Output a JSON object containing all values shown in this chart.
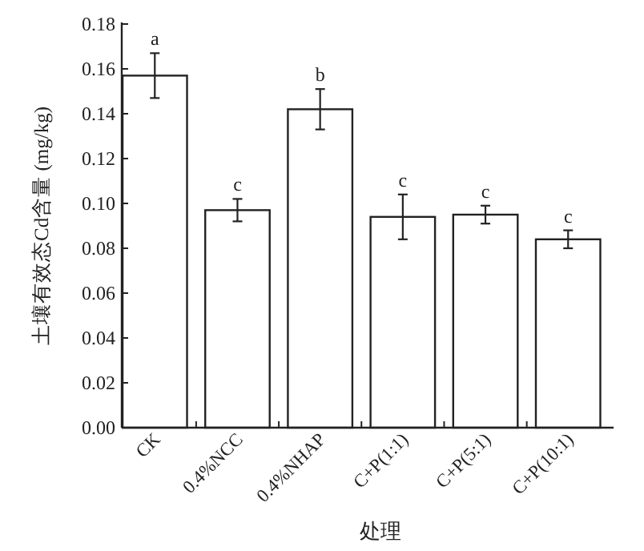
{
  "chart_data": {
    "type": "bar",
    "xlabel": "处理",
    "ylabel": "土壤有效态Cd含量 (mg/kg)",
    "categories": [
      "CK",
      "0.4%NCC",
      "0.4%NHAP",
      "C+P(1:1)",
      "C+P(5:1)",
      "C+P(10:1)"
    ],
    "values": [
      0.157,
      0.097,
      0.142,
      0.094,
      0.095,
      0.084
    ],
    "errors": [
      0.01,
      0.005,
      0.009,
      0.01,
      0.004,
      0.004
    ],
    "color": "#ffffff",
    "ylim": [
      0,
      0.18
    ],
    "yticks": [
      {
        "value": 0,
        "label": "0.00"
      },
      {
        "value": 0.02,
        "label": "0.02"
      },
      {
        "value": 0.04,
        "label": "0.04"
      },
      {
        "value": 0.06,
        "label": "0.06"
      },
      {
        "value": 0.08,
        "label": "0.08"
      },
      {
        "value": 0.1,
        "label": "0.10"
      },
      {
        "value": 0.12,
        "label": "0.12"
      },
      {
        "value": 0.14,
        "label": "0.14"
      },
      {
        "value": 0.16,
        "label": "0.16"
      },
      {
        "value": 0.18,
        "label": "0.18"
      }
    ],
    "annotations": [
      {
        "text": "a",
        "x": "CK",
        "y": 0.167
      },
      {
        "text": "c",
        "x": "0.4%NCC",
        "y": 0.102
      },
      {
        "text": "b",
        "x": "0.4%NHAP",
        "y": 0.151
      },
      {
        "text": "c",
        "x": "C+P(1:1)",
        "y": 0.104
      },
      {
        "text": "c",
        "x": "C+P(5:1)",
        "y": 0.099
      },
      {
        "text": "c",
        "x": "C+P(10:1)",
        "y": 0.088
      }
    ]
  }
}
